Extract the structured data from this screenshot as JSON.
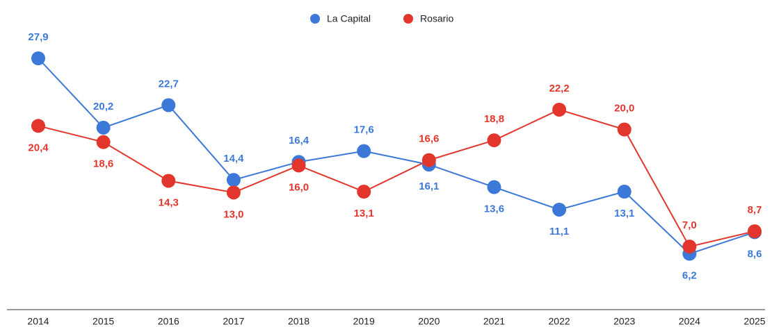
{
  "chart_data": {
    "type": "line",
    "categories": [
      "2014",
      "2015",
      "2016",
      "2017",
      "2018",
      "2019",
      "2020",
      "2021",
      "2022",
      "2023",
      "2024",
      "2025"
    ],
    "series": [
      {
        "name": "La Capital",
        "color": "#3c78d8",
        "values": [
          27.9,
          20.2,
          22.7,
          14.4,
          16.4,
          17.6,
          16.1,
          13.6,
          11.1,
          13.1,
          6.2,
          8.6
        ],
        "value_labels": [
          "27,9",
          "20,2",
          "22,7",
          "14,4",
          "16,4",
          "17,6",
          "16,1",
          "13,6",
          "11,1",
          "13,1",
          "6,2",
          "8,6"
        ]
      },
      {
        "name": "Rosario",
        "color": "#e2362c",
        "values": [
          20.4,
          18.6,
          14.3,
          13.0,
          16.0,
          13.1,
          16.6,
          18.8,
          22.2,
          20.0,
          7.0,
          8.7
        ],
        "value_labels": [
          "20,4",
          "18,6",
          "14,3",
          "13,0",
          "16,0",
          "13,1",
          "16,6",
          "18,8",
          "22,2",
          "20,0",
          "7,0",
          "8,7"
        ]
      }
    ],
    "legend": "top"
  }
}
